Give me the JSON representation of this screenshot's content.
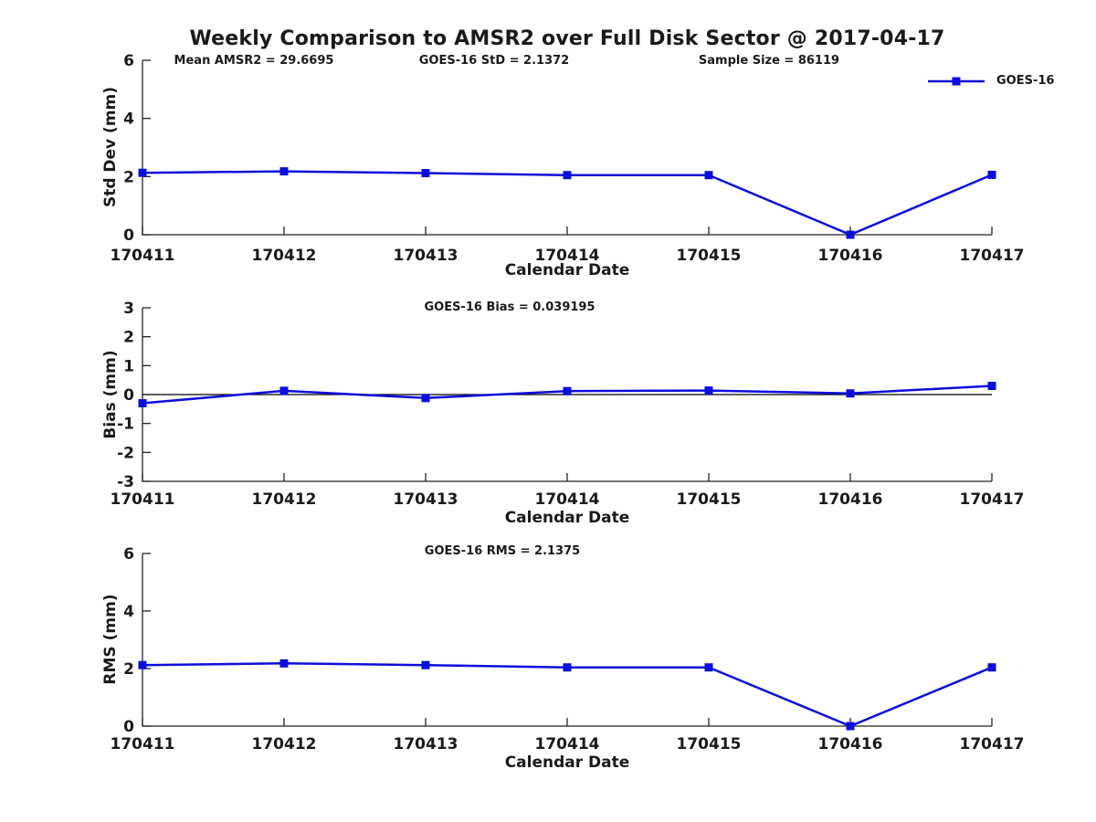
{
  "figure": {
    "title": "Weekly Comparison to AMSR2 over Full Disk Sector @ 2017-04-17",
    "legend_label": "GOES-16"
  },
  "colors": {
    "line": "#0d0ddc",
    "marker": "#0d0ddc",
    "axis": "#222222",
    "zero_line": "#000000",
    "text": "#1a1a1a",
    "background": "#ffffff"
  },
  "chart_data": [
    {
      "type": "line",
      "title": "Weekly Comparison to AMSR2 over Full Disk Sector @ 2017-04-17",
      "annotations": [
        "Mean AMSR2 = 29.6695",
        "GOES-16 StD = 2.1372",
        "Sample Size = 86119"
      ],
      "x_categories": [
        "170411",
        "170412",
        "170413",
        "170414",
        "170415",
        "170416",
        "170417"
      ],
      "xlabel": "Calendar Date",
      "ylabel": "Std Dev (mm)",
      "ylim": [
        0,
        6
      ],
      "yticks": [
        0,
        2,
        4,
        6
      ],
      "grid": false,
      "zero_reference_line": false,
      "legend": {
        "labels": [
          "GOES-16"
        ],
        "position": "top-right"
      },
      "series": [
        {
          "name": "GOES-16",
          "marker": "square",
          "values": [
            2.13,
            2.18,
            2.12,
            2.05,
            2.05,
            0.0,
            2.06
          ]
        }
      ]
    },
    {
      "type": "line",
      "annotations": [
        "GOES-16 Bias  = 0.039195"
      ],
      "x_categories": [
        "170411",
        "170412",
        "170413",
        "170414",
        "170415",
        "170416",
        "170417"
      ],
      "xlabel": "Calendar Date",
      "ylabel": "Bias (mm)",
      "ylim": [
        -3,
        3
      ],
      "yticks": [
        -3,
        -2,
        -1,
        0,
        1,
        2,
        3
      ],
      "grid": false,
      "zero_reference_line": true,
      "series": [
        {
          "name": "GOES-16",
          "marker": "square",
          "values": [
            -0.3,
            0.13,
            -0.12,
            0.12,
            0.14,
            0.04,
            0.3
          ]
        }
      ]
    },
    {
      "type": "line",
      "annotations": [
        "GOES-16 RMS = 2.1375"
      ],
      "x_categories": [
        "170411",
        "170412",
        "170413",
        "170414",
        "170415",
        "170416",
        "170417"
      ],
      "xlabel": "Calendar Date",
      "ylabel": "RMS (mm)",
      "ylim": [
        0,
        6
      ],
      "yticks": [
        0,
        2,
        4,
        6
      ],
      "grid": false,
      "zero_reference_line": false,
      "series": [
        {
          "name": "GOES-16",
          "marker": "square",
          "values": [
            2.12,
            2.18,
            2.12,
            2.04,
            2.04,
            0.0,
            2.04
          ]
        }
      ]
    }
  ]
}
